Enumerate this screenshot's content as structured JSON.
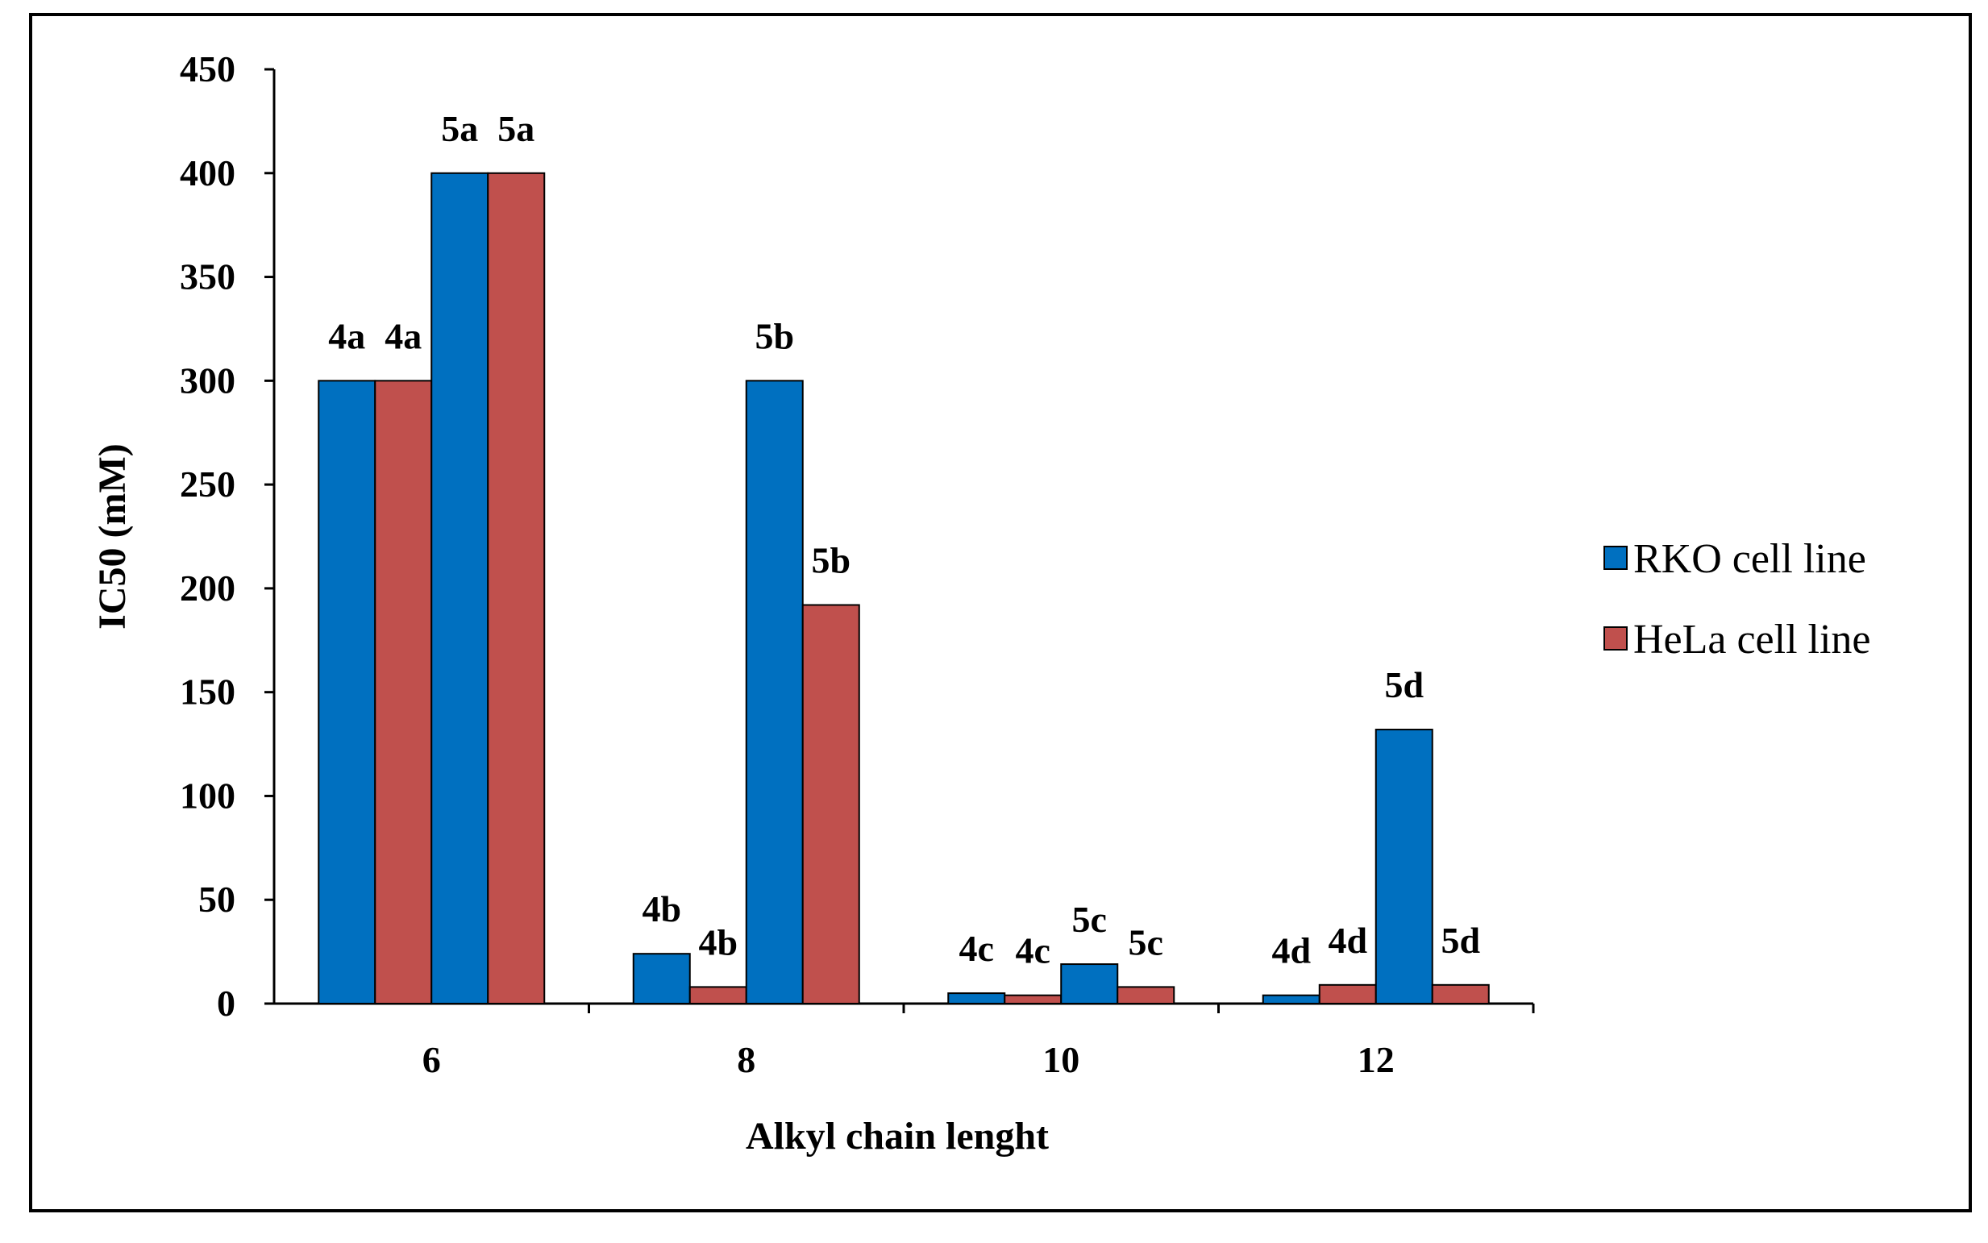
{
  "chart_data": {
    "type": "bar",
    "title": "",
    "xlabel": "Alkyl chain lenght",
    "ylabel": "IC50 (mM)",
    "ylim": [
      0,
      450
    ],
    "yticks": [
      0,
      50,
      100,
      150,
      200,
      250,
      300,
      350,
      400,
      450
    ],
    "categories": [
      "6",
      "8",
      "10",
      "12"
    ],
    "bar_order": [
      "RKO 4",
      "HeLa 4",
      "RKO 5",
      "HeLa 5"
    ],
    "bars": [
      {
        "category": "6",
        "items": [
          {
            "series": "RKO cell line",
            "label": "4a",
            "value": 300
          },
          {
            "series": "HeLa cell line",
            "label": "4a",
            "value": 300
          },
          {
            "series": "RKO cell line",
            "label": "5a",
            "value": 400
          },
          {
            "series": "HeLa cell line",
            "label": "5a",
            "value": 400
          }
        ]
      },
      {
        "category": "8",
        "items": [
          {
            "series": "RKO cell line",
            "label": "4b",
            "value": 24
          },
          {
            "series": "HeLa cell line",
            "label": "4b",
            "value": 8
          },
          {
            "series": "RKO cell line",
            "label": "5b",
            "value": 300
          },
          {
            "series": "HeLa cell line",
            "label": "5b",
            "value": 192
          }
        ]
      },
      {
        "category": "10",
        "items": [
          {
            "series": "RKO cell line",
            "label": "4c",
            "value": 5
          },
          {
            "series": "HeLa cell line",
            "label": "4c",
            "value": 4
          },
          {
            "series": "RKO cell line",
            "label": "5c",
            "value": 19
          },
          {
            "series": "HeLa cell line",
            "label": "5c",
            "value": 8
          }
        ]
      },
      {
        "category": "12",
        "items": [
          {
            "series": "RKO cell line",
            "label": "4d",
            "value": 4
          },
          {
            "series": "HeLa cell line",
            "label": "4d",
            "value": 9
          },
          {
            "series": "RKO cell line",
            "label": "5d",
            "value": 132
          },
          {
            "series": "HeLa cell line",
            "label": "5d",
            "value": 9
          }
        ]
      }
    ],
    "series": [
      {
        "name": "RKO cell line",
        "color": "#0070C0"
      },
      {
        "name": "HeLa cell line",
        "color": "#C0504D"
      }
    ],
    "legend_position": "right",
    "grid": false
  }
}
